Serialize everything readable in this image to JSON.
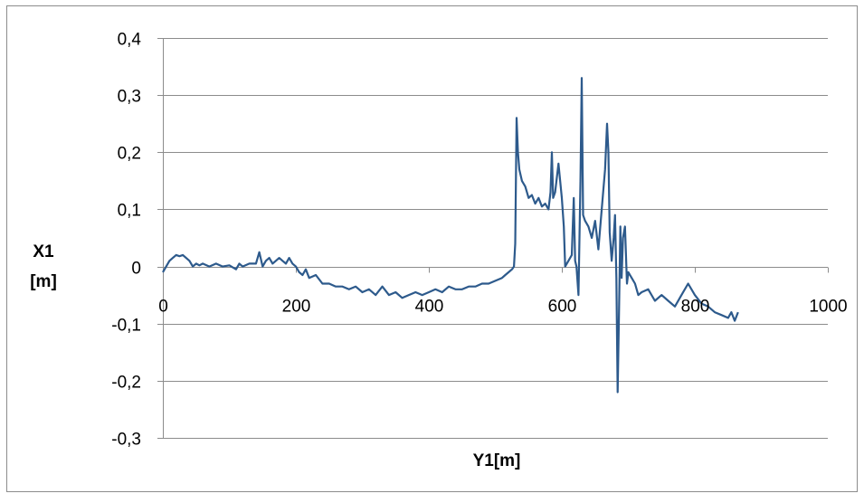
{
  "chart_data": {
    "type": "line",
    "xlabel": "Y1[m]",
    "ylabel_line1": "X1",
    "ylabel_line2": "[m]",
    "xlim": [
      0,
      1000
    ],
    "ylim": [
      -0.3,
      0.4
    ],
    "x_ticks": [
      0,
      200,
      400,
      600,
      800,
      1000
    ],
    "x_tick_labels": [
      "0",
      "200",
      "400",
      "600",
      "800",
      "1000"
    ],
    "y_ticks": [
      0.4,
      0.3,
      0.2,
      0.1,
      0,
      -0.1,
      -0.2,
      -0.3
    ],
    "y_tick_labels": [
      "0,4",
      "0,3",
      "0,2",
      "0,1",
      "0",
      "-0,1",
      "-0,2",
      "-0,3"
    ],
    "grid": "horizontal",
    "legend": "none",
    "line_color": "#2d5a8c",
    "series": [
      {
        "x": [
          0,
          5,
          10,
          15,
          20,
          25,
          30,
          35,
          40,
          45,
          50,
          55,
          60,
          70,
          80,
          90,
          100,
          110,
          115,
          120,
          130,
          140,
          145,
          150,
          155,
          160,
          165,
          170,
          175,
          180,
          185,
          190,
          195,
          200,
          205,
          210,
          215,
          220,
          230,
          240,
          250,
          260,
          270,
          280,
          290,
          300,
          310,
          320,
          330,
          340,
          350,
          360,
          370,
          380,
          390,
          400,
          410,
          420,
          430,
          440,
          450,
          460,
          470,
          480,
          490,
          500,
          510,
          515,
          520,
          525,
          528,
          530,
          532,
          534,
          536,
          540,
          545,
          550,
          555,
          560,
          565,
          570,
          575,
          580,
          583,
          585,
          587,
          590,
          595,
          600,
          603,
          605,
          610,
          615,
          618,
          620,
          622,
          625,
          628,
          630,
          632,
          635,
          640,
          645,
          650,
          655,
          660,
          665,
          668,
          670,
          672,
          675,
          678,
          680,
          682,
          684,
          686,
          688,
          690,
          692,
          695,
          698,
          700,
          705,
          710,
          715,
          720,
          730,
          740,
          750,
          760,
          770,
          780,
          790,
          800,
          810,
          820,
          830,
          840,
          850,
          855,
          860,
          865
        ],
        "y": [
          -0.01,
          0.0,
          0.01,
          0.015,
          0.02,
          0.018,
          0.02,
          0.015,
          0.01,
          0.0,
          0.005,
          0.002,
          0.005,
          0.0,
          0.005,
          0.0,
          0.002,
          -0.005,
          0.005,
          0.0,
          0.005,
          0.005,
          0.025,
          0.0,
          0.01,
          0.015,
          0.005,
          0.01,
          0.015,
          0.01,
          0.005,
          0.015,
          0.005,
          0.0,
          -0.01,
          -0.015,
          -0.005,
          -0.02,
          -0.015,
          -0.03,
          -0.03,
          -0.035,
          -0.035,
          -0.04,
          -0.035,
          -0.045,
          -0.04,
          -0.05,
          -0.035,
          -0.05,
          -0.045,
          -0.055,
          -0.05,
          -0.045,
          -0.05,
          -0.045,
          -0.04,
          -0.045,
          -0.035,
          -0.04,
          -0.04,
          -0.035,
          -0.035,
          -0.03,
          -0.03,
          -0.025,
          -0.02,
          -0.015,
          -0.01,
          -0.005,
          0.0,
          0.04,
          0.26,
          0.2,
          0.17,
          0.15,
          0.14,
          0.12,
          0.125,
          0.11,
          0.12,
          0.105,
          0.11,
          0.1,
          0.13,
          0.2,
          0.12,
          0.13,
          0.18,
          0.12,
          0.07,
          0.0,
          0.01,
          0.02,
          0.12,
          0.01,
          0.0,
          -0.05,
          0.15,
          0.33,
          0.09,
          0.08,
          0.07,
          0.05,
          0.08,
          0.03,
          0.1,
          0.17,
          0.25,
          0.2,
          0.06,
          0.01,
          0.05,
          0.09,
          -0.02,
          -0.22,
          -0.08,
          0.07,
          -0.02,
          0.05,
          0.07,
          -0.03,
          -0.01,
          -0.02,
          -0.03,
          -0.05,
          -0.045,
          -0.04,
          -0.06,
          -0.05,
          -0.06,
          -0.07,
          -0.05,
          -0.03,
          -0.05,
          -0.065,
          -0.07,
          -0.08,
          -0.085,
          -0.09,
          -0.08,
          -0.095,
          -0.08
        ]
      }
    ]
  }
}
